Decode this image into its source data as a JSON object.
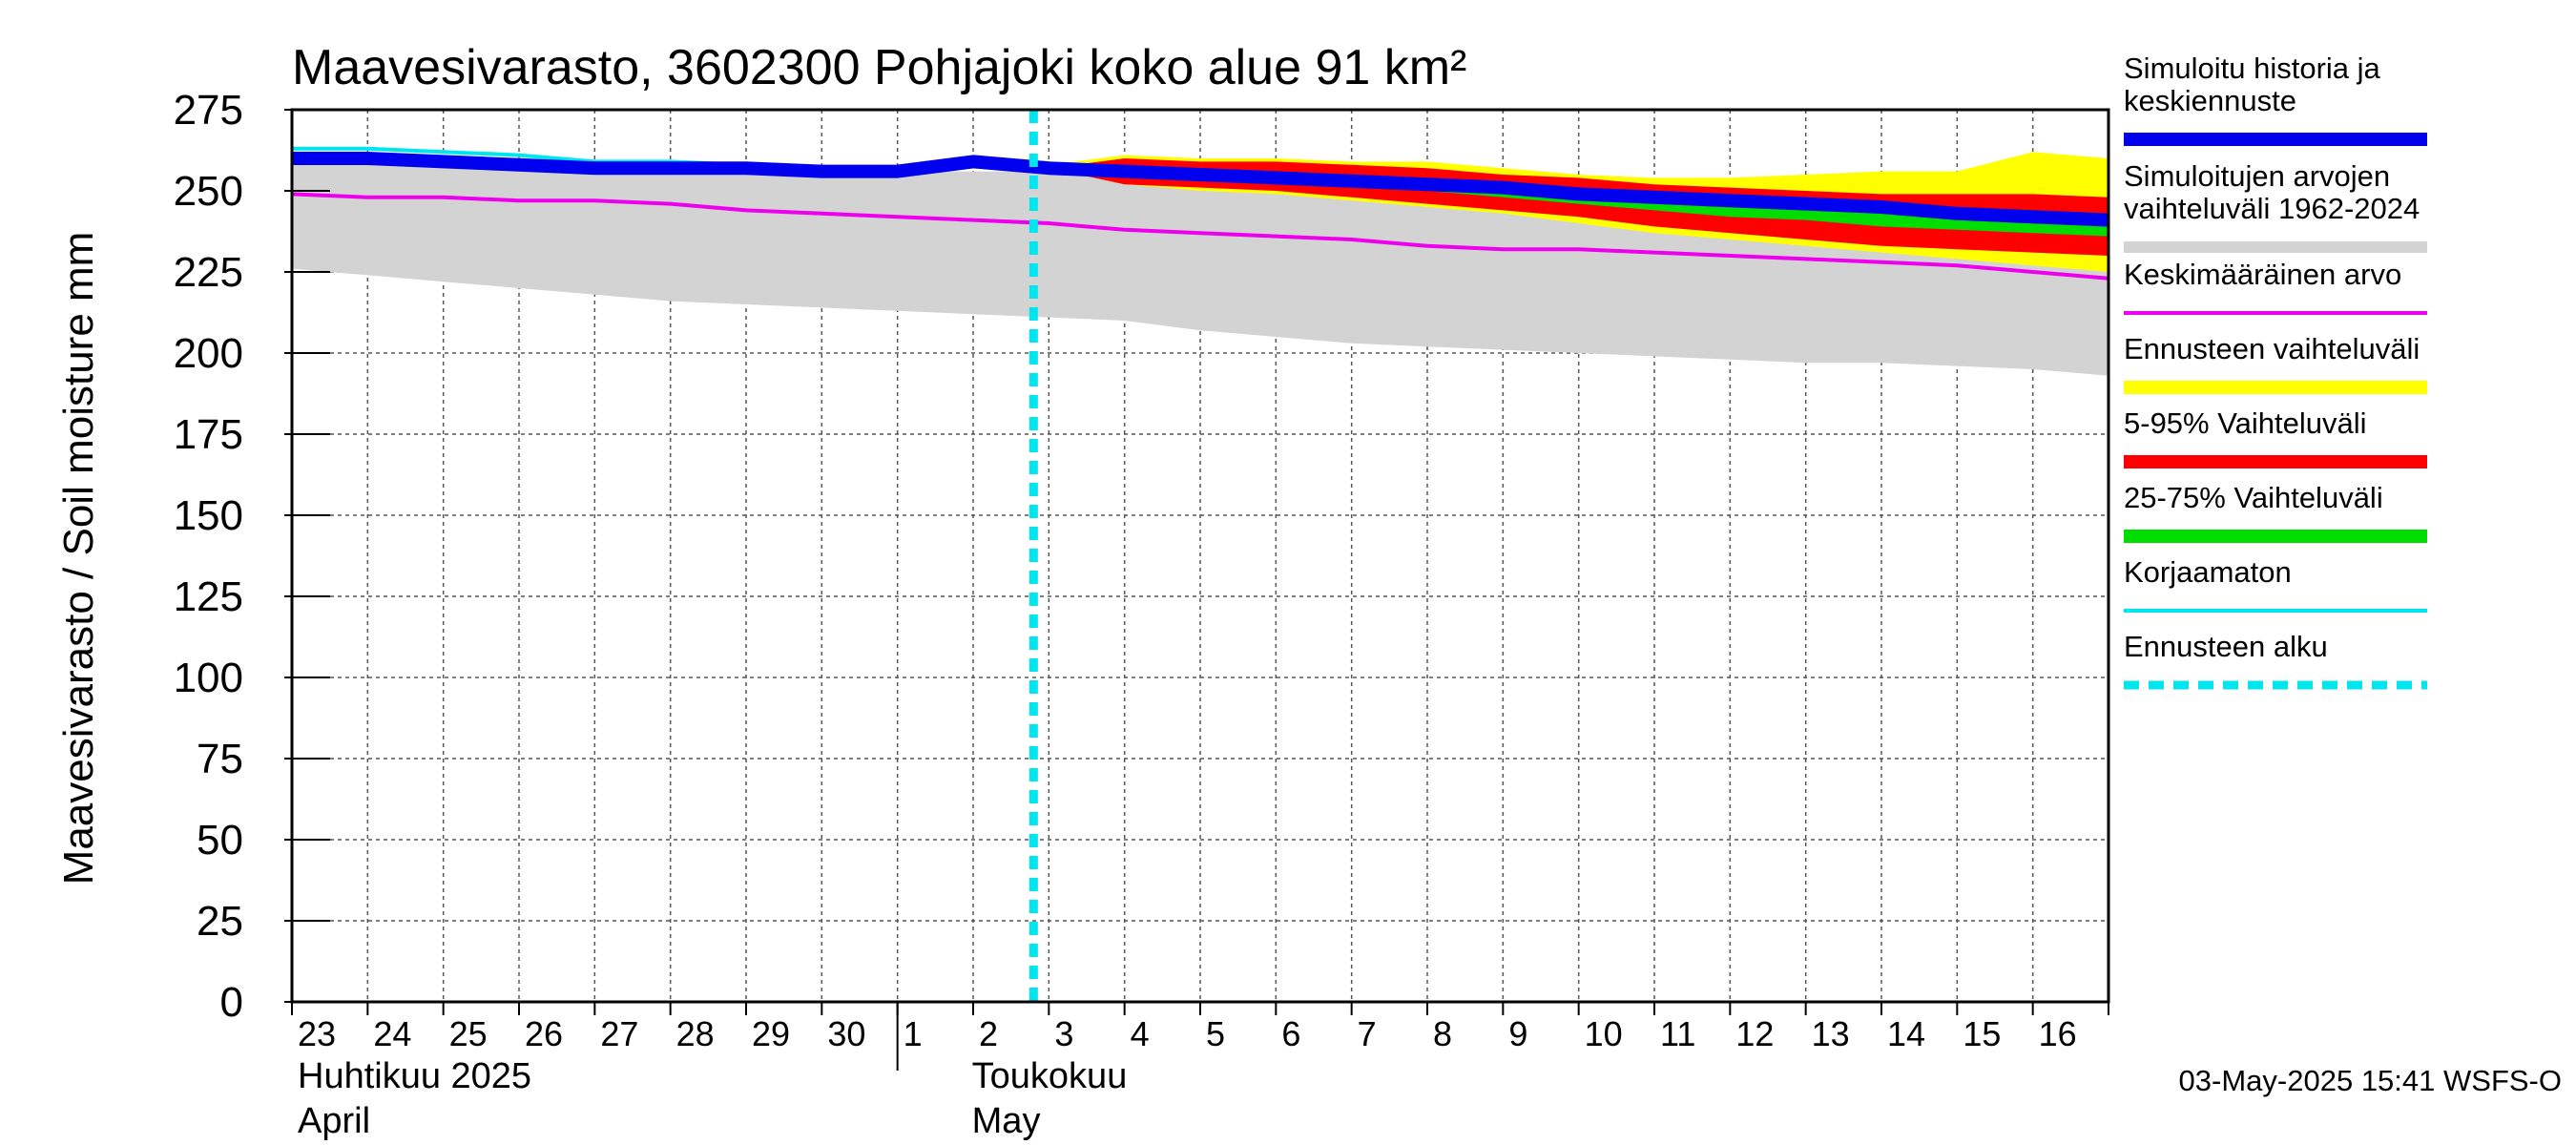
{
  "chart_data": {
    "type": "area",
    "title": "Maavesivarasto, 3602300 Pohjajoki koko alue 91 km²",
    "ylabel": "Maavesivarasto / Soil moisture   mm",
    "ylim": [
      0,
      275
    ],
    "yticks": [
      0,
      25,
      50,
      75,
      100,
      125,
      150,
      175,
      200,
      225,
      250,
      275
    ],
    "x_days": [
      "23",
      "24",
      "25",
      "26",
      "27",
      "28",
      "29",
      "30",
      "1",
      "2",
      "3",
      "4",
      "5",
      "6",
      "7",
      "8",
      "9",
      "10",
      "11",
      "12",
      "13",
      "14",
      "15",
      "16"
    ],
    "month_labels": [
      {
        "fi": "Huhtikuu  2025",
        "en": "April",
        "start_index": 0
      },
      {
        "fi": "Toukokuu",
        "en": "May",
        "start_index": 8
      }
    ],
    "forecast_start_index": 10,
    "grid": true,
    "timestamp": "03-May-2025 15:41 WSFS-O",
    "series": [
      {
        "name": "Simuloitujen arvojen vaihteluväli 1962-2024",
        "kind": "band",
        "color": "#d3d3d3",
        "x": [
          0,
          1,
          2,
          3,
          4,
          5,
          6,
          7,
          8,
          9,
          10,
          11,
          12,
          13,
          14,
          15,
          16,
          17,
          18,
          19,
          20,
          21,
          22,
          23,
          24
        ],
        "upper": [
          258,
          258,
          258,
          257,
          257,
          257,
          256,
          256,
          256,
          256,
          256,
          256,
          256,
          256,
          255,
          255,
          254,
          254,
          253,
          253,
          253,
          253,
          252,
          252,
          252
        ],
        "lower": [
          226,
          224,
          222,
          220,
          218,
          216,
          215,
          214,
          213,
          212,
          211,
          210,
          207,
          205,
          203,
          202,
          201,
          200,
          199,
          198,
          197,
          197,
          196,
          195,
          193
        ]
      },
      {
        "name": "Ennusteen vaihteluväli",
        "kind": "band",
        "color": "#ffff00",
        "x": [
          10,
          11,
          12,
          13,
          14,
          15,
          16,
          17,
          18,
          19,
          20,
          21,
          22,
          23,
          24
        ],
        "upper": [
          258,
          261,
          260,
          260,
          259,
          259,
          257,
          255,
          254,
          254,
          255,
          256,
          256,
          262,
          260
        ],
        "lower": [
          257,
          252,
          250,
          249,
          247,
          245,
          243,
          240,
          237,
          235,
          233,
          231,
          229,
          227,
          225
        ]
      },
      {
        "name": "5-95% Vaihteluväli",
        "kind": "band",
        "color": "#ff0000",
        "x": [
          10,
          11,
          12,
          13,
          14,
          15,
          16,
          17,
          18,
          19,
          20,
          21,
          22,
          23,
          24
        ],
        "upper": [
          257,
          260,
          259,
          259,
          258,
          257,
          255,
          254,
          252,
          251,
          250,
          249,
          249,
          249,
          248
        ],
        "lower": [
          257,
          252,
          251,
          250,
          248,
          246,
          244,
          242,
          239,
          237,
          235,
          233,
          232,
          231,
          230
        ]
      },
      {
        "name": "25-75% Vaihteluväli",
        "kind": "band",
        "color": "#00dd00",
        "x": [
          10,
          11,
          12,
          13,
          14,
          15,
          16,
          17,
          18,
          19,
          20,
          21,
          22,
          23,
          24
        ],
        "upper": [
          257,
          257,
          256,
          255,
          254,
          252,
          251,
          250,
          249,
          248,
          247,
          246,
          245,
          244,
          243
        ],
        "lower": [
          257,
          255,
          254,
          253,
          252,
          250,
          248,
          246,
          244,
          242,
          241,
          239,
          238,
          237,
          236
        ]
      },
      {
        "name": "Keskimääräinen arvo",
        "kind": "line",
        "color": "#ee00ee",
        "width": 4,
        "x": [
          0,
          1,
          2,
          3,
          4,
          5,
          6,
          7,
          8,
          9,
          10,
          11,
          12,
          13,
          14,
          15,
          16,
          17,
          18,
          19,
          20,
          21,
          22,
          23,
          24
        ],
        "y": [
          249,
          248,
          248,
          247,
          247,
          246,
          244,
          243,
          242,
          241,
          240,
          238,
          237,
          236,
          235,
          233,
          232,
          232,
          231,
          230,
          229,
          228,
          227,
          225,
          223
        ]
      },
      {
        "name": "Korjaamaton",
        "kind": "line",
        "color": "#00e5ee",
        "width": 4,
        "x": [
          0,
          1,
          2,
          3,
          4,
          5,
          6,
          7,
          8,
          9,
          10
        ],
        "y": [
          263,
          263,
          262,
          261,
          259,
          259,
          258,
          257,
          256,
          259,
          257
        ]
      },
      {
        "name": "Simuloitu historia ja keskiennuste",
        "kind": "line",
        "color": "#0000ee",
        "width": 14,
        "x": [
          0,
          1,
          2,
          3,
          4,
          5,
          6,
          7,
          8,
          9,
          10,
          11,
          12,
          13,
          14,
          15,
          16,
          17,
          18,
          19,
          20,
          21,
          22,
          23,
          24
        ],
        "y": [
          260,
          260,
          259,
          258,
          257,
          257,
          257,
          256,
          256,
          259,
          257,
          256,
          255,
          254,
          253,
          252,
          251,
          249,
          248,
          247,
          246,
          245,
          243,
          242,
          241
        ]
      }
    ],
    "legend": [
      {
        "label": "Simuloitu historia ja keskiennuste",
        "color": "#0000ee",
        "style": "solid"
      },
      {
        "label": "Simuloitujen arvojen vaihteluväli 1962-2024",
        "color": "#d3d3d3",
        "style": "solid"
      },
      {
        "label": "Keskimääräinen arvo",
        "color": "#ee00ee",
        "style": "solid"
      },
      {
        "label": "Ennusteen vaihteluväli",
        "color": "#ffff00",
        "style": "solid"
      },
      {
        "label": "5-95% Vaihteluväli",
        "color": "#ff0000",
        "style": "solid"
      },
      {
        "label": "25-75% Vaihteluväli",
        "color": "#00dd00",
        "style": "solid"
      },
      {
        "label": "Korjaamaton",
        "color": "#00e5ee",
        "style": "solid"
      },
      {
        "label": "Ennusteen alku",
        "color": "#00e5ee",
        "style": "dashed"
      }
    ]
  }
}
